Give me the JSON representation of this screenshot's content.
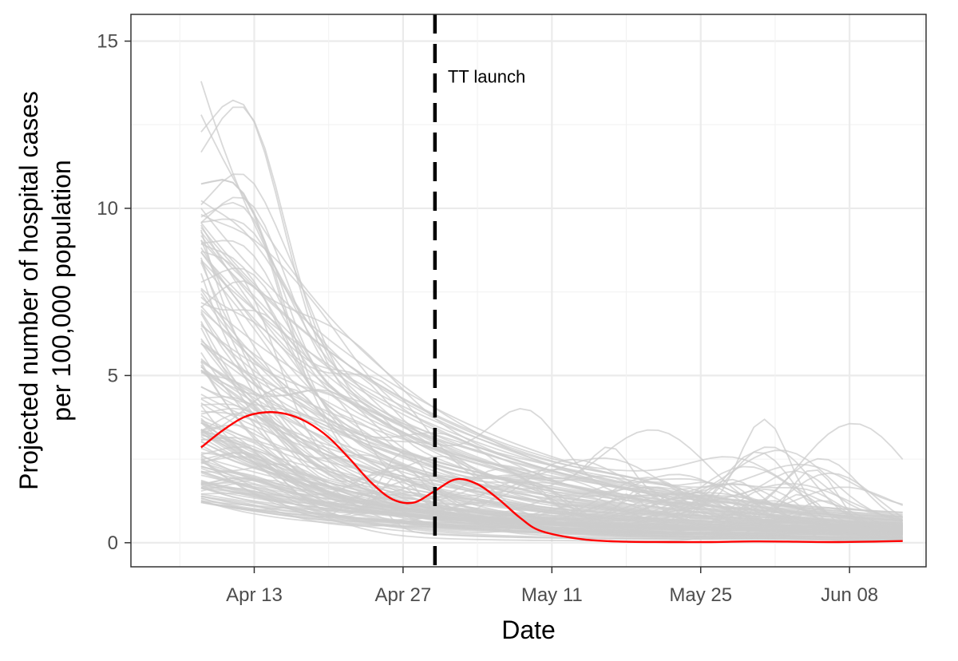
{
  "chart_data": {
    "type": "line",
    "title": "",
    "xlabel": "Date",
    "ylabel_lines": [
      "Projected number of hospital cases",
      "per 100,000 population"
    ],
    "x_ticks": [
      "Apr 13",
      "Apr 27",
      "May 11",
      "May 25",
      "Jun 08"
    ],
    "x_tick_days": [
      13,
      27,
      41,
      55,
      69
    ],
    "x_range_days": [
      1.4,
      76.2
    ],
    "x_start_day": 8,
    "x_end_day": 74,
    "y_ticks": [
      0,
      5,
      10,
      15
    ],
    "ylim": [
      -0.72,
      15.8
    ],
    "grid": true,
    "vline": {
      "day": 30,
      "label": "TT launch",
      "style": "dashed",
      "color": "#000000"
    },
    "highlight_series": {
      "name": "",
      "color": "#ff0000",
      "x_days": [
        8,
        10,
        12,
        14,
        16,
        18,
        20,
        22,
        24,
        26,
        28,
        30,
        32,
        34,
        36,
        38,
        40,
        44,
        48,
        52,
        56,
        60,
        64,
        68,
        74
      ],
      "values": [
        2.85,
        3.35,
        3.75,
        3.9,
        3.85,
        3.6,
        3.15,
        2.5,
        1.8,
        1.3,
        1.2,
        1.55,
        1.9,
        1.75,
        1.3,
        0.75,
        0.35,
        0.1,
        0.03,
        0.02,
        0.02,
        0.04,
        0.03,
        0.02,
        0.05
      ]
    },
    "background_series_color": "#cccccc",
    "background_series_count": 150
  }
}
